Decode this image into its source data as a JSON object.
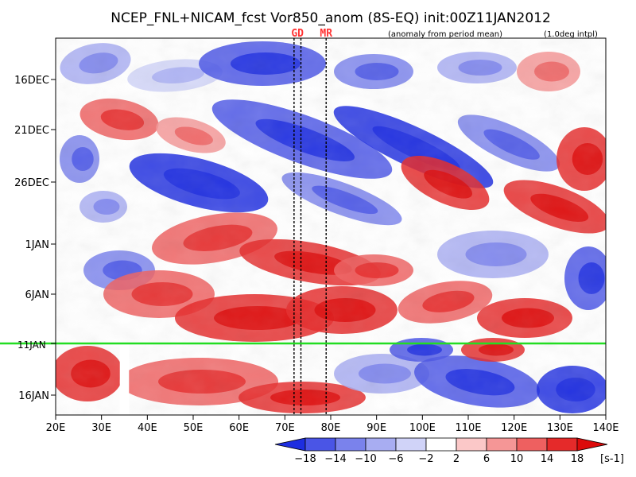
{
  "chart_data": {
    "type": "heatmap",
    "title": "NCEP_FNL+NICAM_fcst Vor850_anom (8S-EQ) init:00Z11JAN2012",
    "subtitle_left": "(anomaly from period mean)",
    "subtitle_right": "(1.0deg intpl)",
    "xlabel": "",
    "ylabel": "",
    "x_ticks": [
      "20E",
      "30E",
      "40E",
      "50E",
      "60E",
      "70E",
      "80E",
      "90E",
      "100E",
      "110E",
      "120E",
      "130E",
      "140E"
    ],
    "x_range": [
      20,
      140
    ],
    "y_ticks": [
      "16DEC",
      "21DEC",
      "26DEC",
      "1JAN",
      "6JAN",
      "11JAN",
      "16JAN"
    ],
    "init_line_label": "11JAN",
    "init_line_color": "#22dd22",
    "markers": [
      {
        "label": "GD",
        "lon_from": 72,
        "lon_to": 73.5,
        "color": "#ff3333"
      },
      {
        "label": "MR",
        "lon_from": 79,
        "lon_to": 79,
        "color": "#ff3333"
      }
    ],
    "colorbar": {
      "levels": [
        "-18",
        "-14",
        "-10",
        "-6",
        "-2",
        "2",
        "6",
        "10",
        "14",
        "18"
      ],
      "unit": "[s-1]",
      "colors": [
        "#1e2ee0",
        "#4a55e6",
        "#7a82ec",
        "#a8adf2",
        "#d0d3f8",
        "#ffffff",
        "#fbc8c8",
        "#f59696",
        "#ee6060",
        "#e52a2a",
        "#dc0a0a"
      ]
    }
  }
}
